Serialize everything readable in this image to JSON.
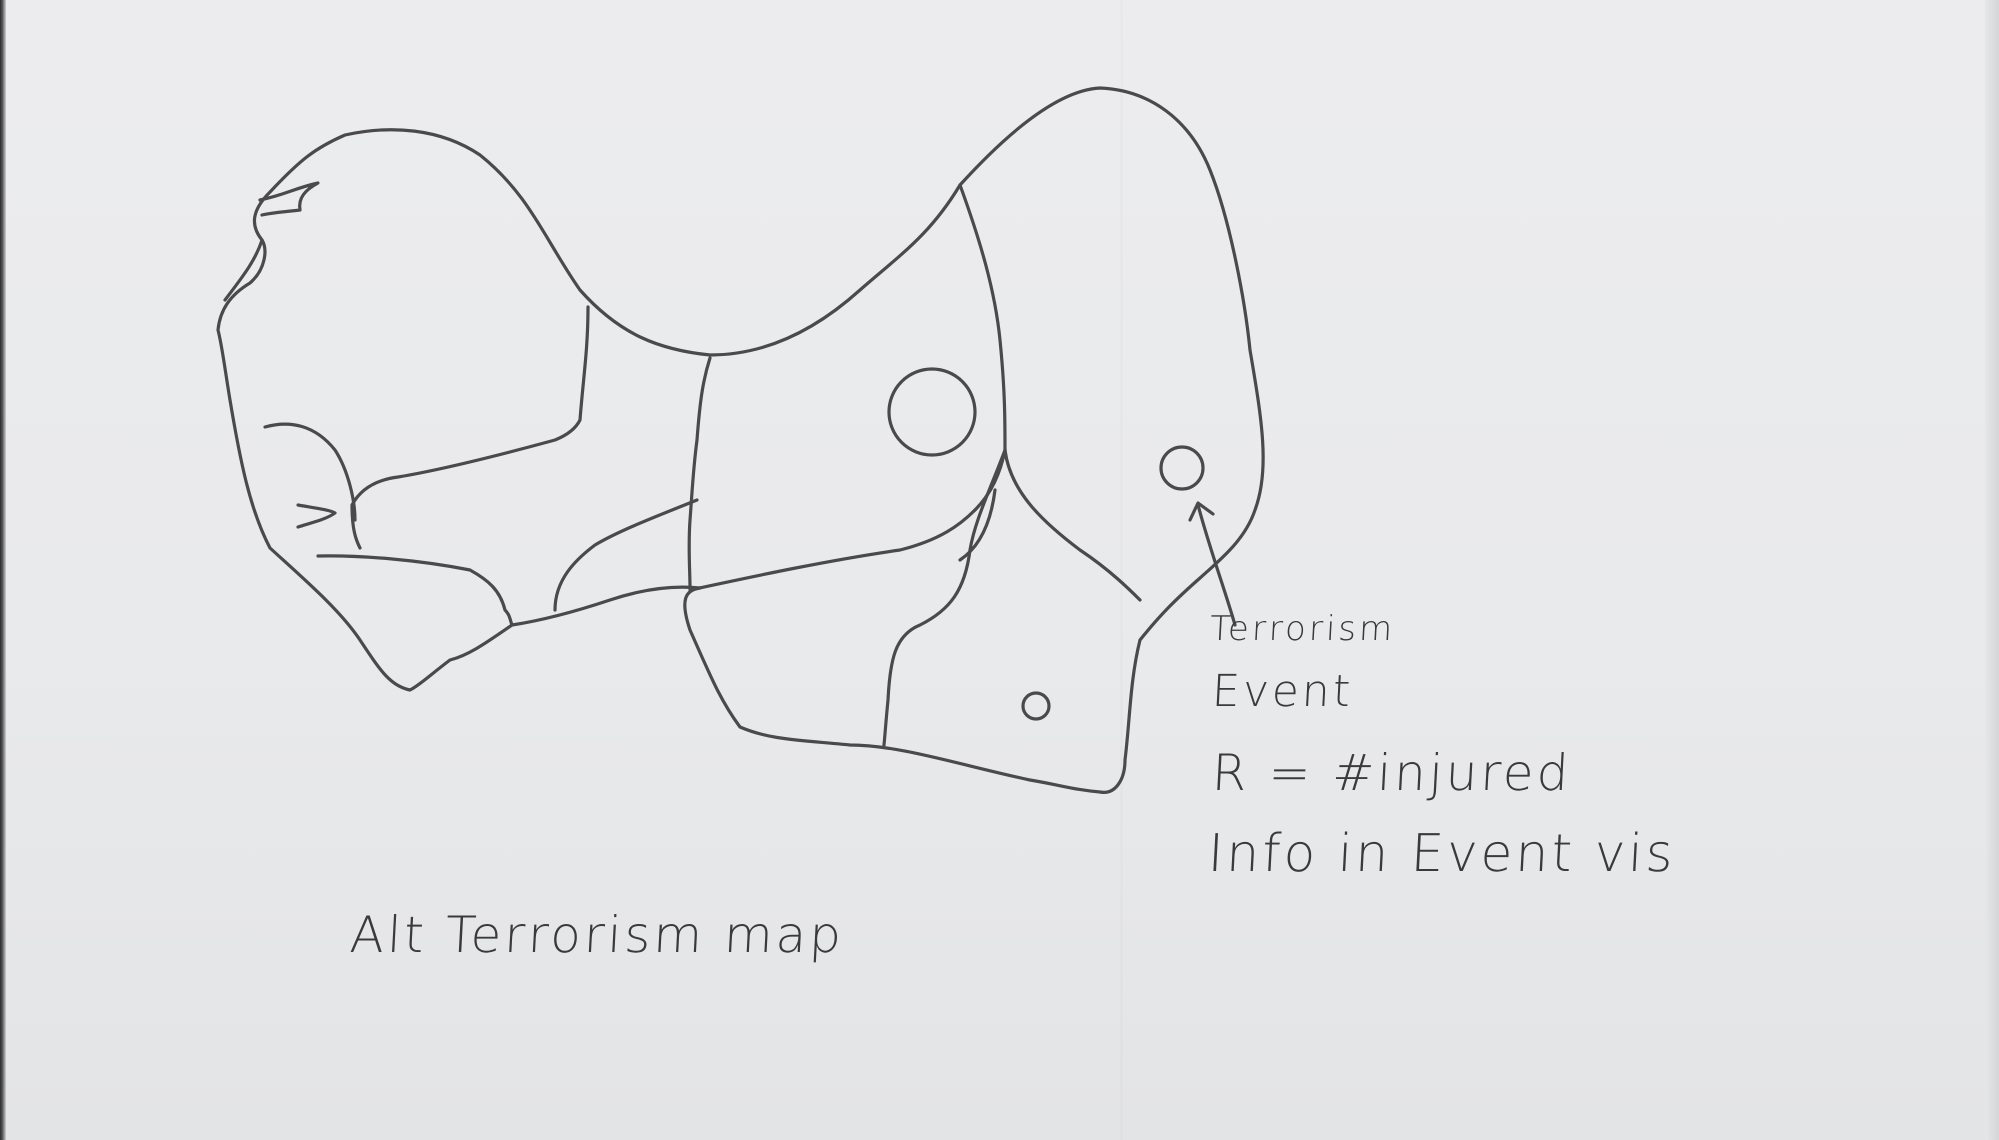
{
  "sketch": {
    "caption": "Alt Terrorism map",
    "legend": {
      "line1": "Terrorism",
      "line2": "Event",
      "line3": "R = #injured",
      "line4": "Info in Event vis"
    },
    "ink_color": "#4a4a4c",
    "paper_color": "#eaebed"
  },
  "markers": [
    {
      "label": "large event circle",
      "relative_size": "large"
    },
    {
      "label": "medium event circle",
      "relative_size": "medium"
    },
    {
      "label": "small event circle",
      "relative_size": "small"
    }
  ]
}
